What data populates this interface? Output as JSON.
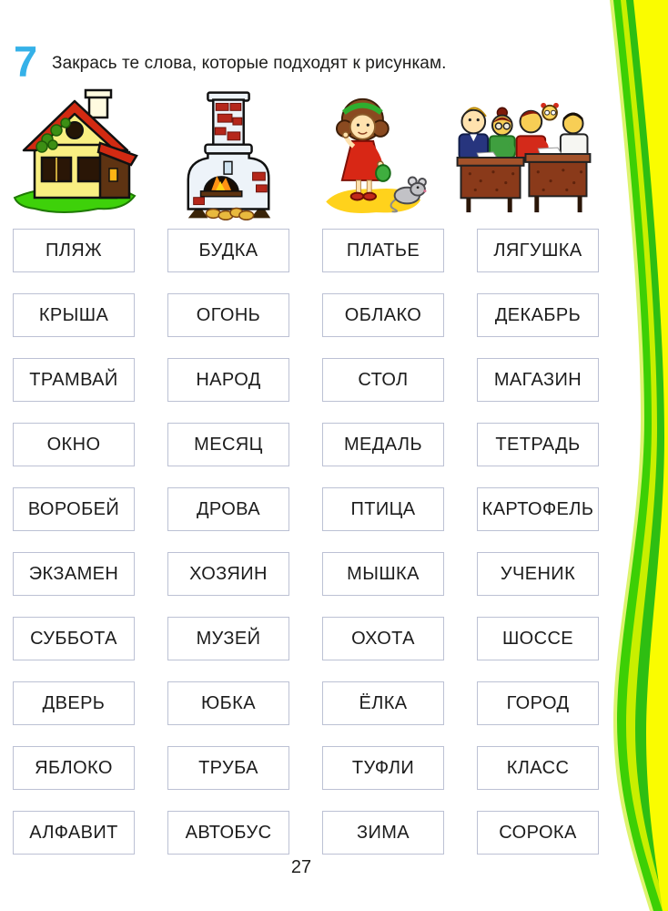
{
  "task": {
    "number": "7",
    "instruction": "Закрась те слова, которые подходят к рисункам."
  },
  "pictures": [
    {
      "icon": "house-illustration"
    },
    {
      "icon": "stove-illustration"
    },
    {
      "icon": "girl-with-mouse-illustration"
    },
    {
      "icon": "classroom-illustration"
    }
  ],
  "word_grid": {
    "columns": [
      {
        "words": [
          "ПЛЯЖ",
          "КРЫША",
          "ТРАМВАЙ",
          "ОКНО",
          "ВОРОБЕЙ",
          "ЭКЗАМЕН",
          "СУББОТА",
          "ДВЕРЬ",
          "ЯБЛОКО",
          "АЛФАВИТ"
        ]
      },
      {
        "words": [
          "БУДКА",
          "ОГОНЬ",
          "НАРОД",
          "МЕСЯЦ",
          "ДРОВА",
          "ХОЗЯИН",
          "МУЗЕЙ",
          "ЮБКА",
          "ТРУБА",
          "АВТОБУС"
        ]
      },
      {
        "words": [
          "ПЛАТЬЕ",
          "ОБЛАКО",
          "СТОЛ",
          "МЕДАЛЬ",
          "ПТИЦА",
          "МЫШКА",
          "ОХОТА",
          "ЁЛКА",
          "ТУФЛИ",
          "ЗИМА"
        ]
      },
      {
        "words": [
          "ЛЯГУШКА",
          "ДЕКАБРЬ",
          "МАГАЗИН",
          "ТЕТРАДЬ",
          "КАРТОФЕЛЬ",
          "УЧЕНИК",
          "ШОССЕ",
          "ГОРОД",
          "КЛАСС",
          "СОРОКА"
        ]
      }
    ]
  },
  "page": {
    "number": "27"
  },
  "colors": {
    "task_number_blue": "#35b1e8",
    "box_border": "#bcc1d4",
    "wave_bright_green": "#3ccf05",
    "wave_yellow_green": "#c8ef00",
    "wave_medium_green": "#2ebe12",
    "wave_yellow": "#fafc00"
  }
}
